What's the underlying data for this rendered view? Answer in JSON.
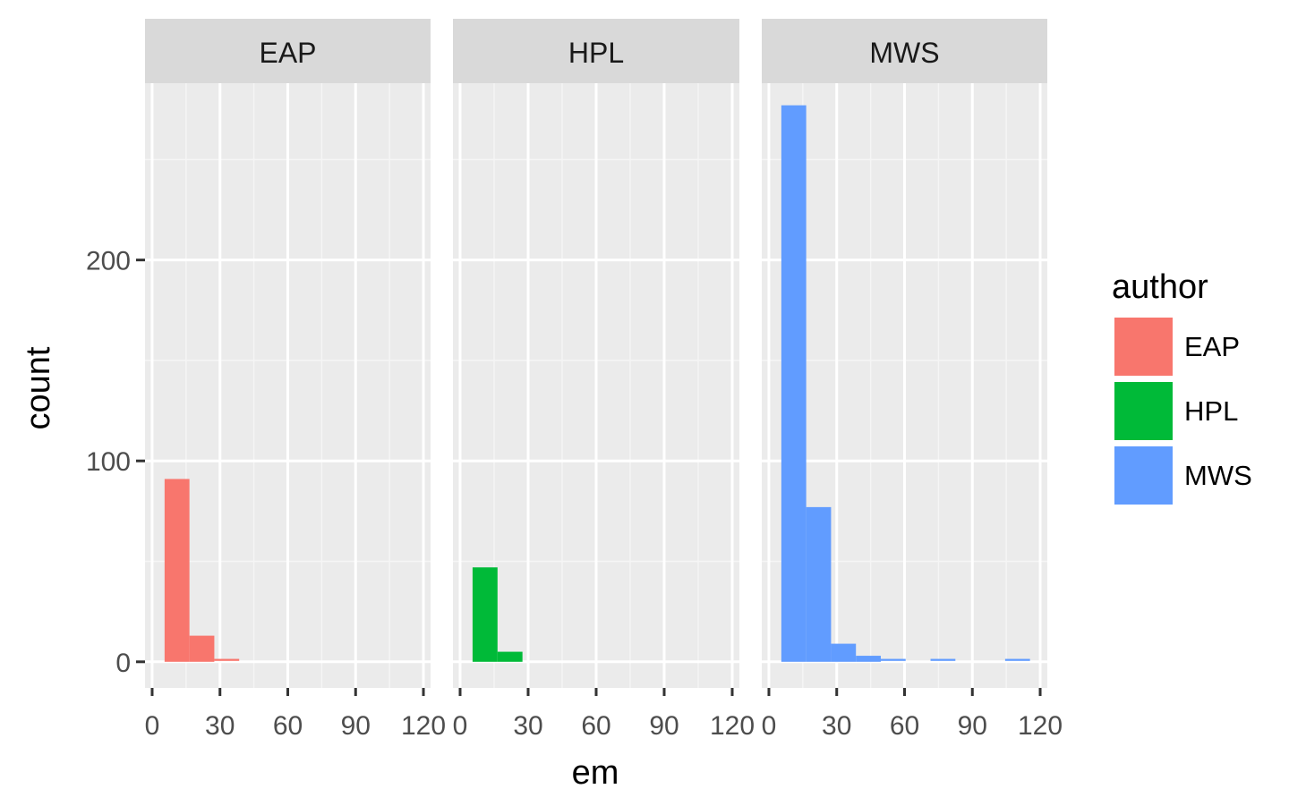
{
  "chart_data": {
    "type": "bar",
    "subtype": "faceted-histogram",
    "xlabel": "em",
    "ylabel": "count",
    "xlim": [
      0,
      120
    ],
    "ylim": [
      -13,
      288
    ],
    "x_ticks": [
      "0",
      "30",
      "60",
      "90",
      "120"
    ],
    "y_ticks": [
      "0",
      "100",
      "200"
    ],
    "bin_width": 11,
    "grid": true,
    "legend": {
      "title": "author",
      "position": "right",
      "entries": [
        {
          "label": "EAP",
          "color": "#F8766D"
        },
        {
          "label": "HPL",
          "color": "#00BA38"
        },
        {
          "label": "MWS",
          "color": "#619CFF"
        }
      ]
    },
    "facets": [
      {
        "label": "EAP",
        "color": "#F8766D",
        "bins": [
          {
            "x0": 5.5,
            "x1": 16.5,
            "count": 91
          },
          {
            "x0": 16.5,
            "x1": 27.5,
            "count": 13
          },
          {
            "x0": 27.5,
            "x1": 38.5,
            "count": 1
          }
        ]
      },
      {
        "label": "HPL",
        "color": "#00BA38",
        "bins": [
          {
            "x0": 5.5,
            "x1": 16.5,
            "count": 47
          },
          {
            "x0": 16.5,
            "x1": 27.5,
            "count": 5
          }
        ]
      },
      {
        "label": "MWS",
        "color": "#619CFF",
        "bins": [
          {
            "x0": 5.5,
            "x1": 16.5,
            "count": 277
          },
          {
            "x0": 16.5,
            "x1": 27.5,
            "count": 77
          },
          {
            "x0": 27.5,
            "x1": 38.5,
            "count": 9
          },
          {
            "x0": 38.5,
            "x1": 49.5,
            "count": 3
          },
          {
            "x0": 49.5,
            "x1": 60.5,
            "count": 1
          },
          {
            "x0": 71.5,
            "x1": 82.5,
            "count": 1
          },
          {
            "x0": 104.5,
            "x1": 115.5,
            "count": 1
          }
        ]
      }
    ]
  }
}
